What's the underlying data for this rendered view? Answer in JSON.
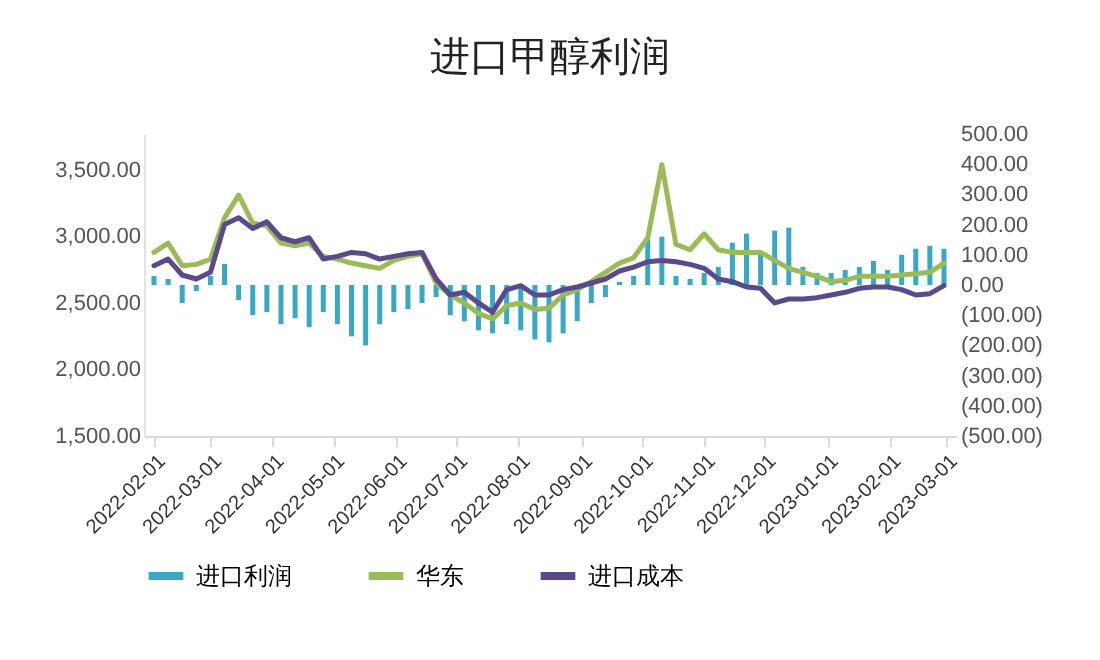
{
  "chart_data": {
    "type": "line",
    "title": "进口甲醇利润",
    "x": [
      "2022-02-01",
      "2022-02-08",
      "2022-02-15",
      "2022-02-22",
      "2022-03-01",
      "2022-03-08",
      "2022-03-15",
      "2022-03-22",
      "2022-03-29",
      "2022-04-05",
      "2022-04-12",
      "2022-04-19",
      "2022-04-26",
      "2022-05-03",
      "2022-05-10",
      "2022-05-17",
      "2022-05-24",
      "2022-05-31",
      "2022-06-07",
      "2022-06-14",
      "2022-06-21",
      "2022-06-28",
      "2022-07-05",
      "2022-07-12",
      "2022-07-19",
      "2022-07-26",
      "2022-08-02",
      "2022-08-09",
      "2022-08-16",
      "2022-08-23",
      "2022-08-30",
      "2022-09-06",
      "2022-09-13",
      "2022-09-20",
      "2022-09-27",
      "2022-10-04",
      "2022-10-11",
      "2022-10-18",
      "2022-10-25",
      "2022-11-01",
      "2022-11-08",
      "2022-11-15",
      "2022-11-22",
      "2022-11-29",
      "2022-12-06",
      "2022-12-13",
      "2022-12-20",
      "2022-12-27",
      "2023-01-03",
      "2023-01-10",
      "2023-01-17",
      "2023-01-24",
      "2023-01-31",
      "2023-02-07",
      "2023-02-14",
      "2023-02-21",
      "2023-02-28"
    ],
    "series": [
      {
        "name": "进口利润",
        "type": "bar",
        "axis": "y2",
        "color": "#3aa8c4",
        "values": [
          30,
          20,
          -60,
          -20,
          30,
          70,
          -50,
          -100,
          -90,
          -130,
          -110,
          -140,
          -90,
          -130,
          -170,
          -200,
          -130,
          -90,
          -80,
          -60,
          -40,
          -100,
          -120,
          -150,
          -160,
          -130,
          -150,
          -180,
          -190,
          -160,
          -120,
          -60,
          -40,
          10,
          30,
          150,
          160,
          30,
          20,
          40,
          60,
          140,
          170,
          100,
          180,
          190,
          60,
          40,
          40,
          50,
          60,
          80,
          50,
          100,
          120,
          130,
          120
        ]
      },
      {
        "name": "华东",
        "type": "line",
        "color": "#9bbb59",
        "values": [
          2880,
          2950,
          2780,
          2790,
          2830,
          3140,
          3310,
          3100,
          3080,
          2950,
          2930,
          2950,
          2850,
          2830,
          2800,
          2780,
          2760,
          2820,
          2850,
          2870,
          2650,
          2560,
          2500,
          2420,
          2380,
          2480,
          2500,
          2450,
          2460,
          2560,
          2600,
          2660,
          2730,
          2800,
          2840,
          2990,
          3540,
          2940,
          2900,
          3020,
          2900,
          2880,
          2880,
          2880,
          2820,
          2760,
          2730,
          2700,
          2660,
          2670,
          2700,
          2700,
          2700,
          2710,
          2720,
          2730,
          2800
        ]
      },
      {
        "name": "进口成本",
        "color": "#5b4a8b",
        "values": [
          2780,
          2830,
          2710,
          2680,
          2730,
          3090,
          3140,
          3060,
          3110,
          2990,
          2960,
          2990,
          2830,
          2850,
          2880,
          2870,
          2830,
          2850,
          2870,
          2880,
          2680,
          2560,
          2580,
          2500,
          2430,
          2600,
          2630,
          2560,
          2560,
          2600,
          2620,
          2650,
          2680,
          2740,
          2770,
          2810,
          2820,
          2810,
          2790,
          2760,
          2680,
          2660,
          2620,
          2610,
          2500,
          2530,
          2530,
          2540,
          2560,
          2580,
          2610,
          2620,
          2620,
          2600,
          2560,
          2570,
          2630
        ]
      }
    ],
    "xlim": [
      "2022-02-01",
      "2023-03-01"
    ],
    "xticks": [
      "2022-02-01",
      "2022-03-01",
      "2022-04-01",
      "2022-05-01",
      "2022-06-01",
      "2022-07-01",
      "2022-08-01",
      "2022-09-01",
      "2022-10-01",
      "2022-11-01",
      "2022-12-01",
      "2023-01-01",
      "2023-02-01",
      "2023-03-01"
    ],
    "ylim": [
      1500,
      3770
    ],
    "yticks": [
      {
        "value": 1500,
        "label": "1,500.00"
      },
      {
        "value": 2000,
        "label": "2,000.00"
      },
      {
        "value": 2500,
        "label": "2,500.00"
      },
      {
        "value": 3000,
        "label": "3,000.00"
      },
      {
        "value": 3500,
        "label": "3,500.00"
      }
    ],
    "y2lim": [
      -500,
      500
    ],
    "y2ticks": [
      {
        "value": -500,
        "label": "(500.00)"
      },
      {
        "value": -400,
        "label": "(400.00)"
      },
      {
        "value": -300,
        "label": "(300.00)"
      },
      {
        "value": -200,
        "label": "(200.00)"
      },
      {
        "value": -100,
        "label": "(100.00)"
      },
      {
        "value": 0,
        "label": "0.00"
      },
      {
        "value": 100,
        "label": "100.00"
      },
      {
        "value": 200,
        "label": "200.00"
      },
      {
        "value": 300,
        "label": "300.00"
      },
      {
        "value": 400,
        "label": "400.00"
      },
      {
        "value": 500,
        "label": "500.00"
      }
    ],
    "legend": "bottom"
  }
}
